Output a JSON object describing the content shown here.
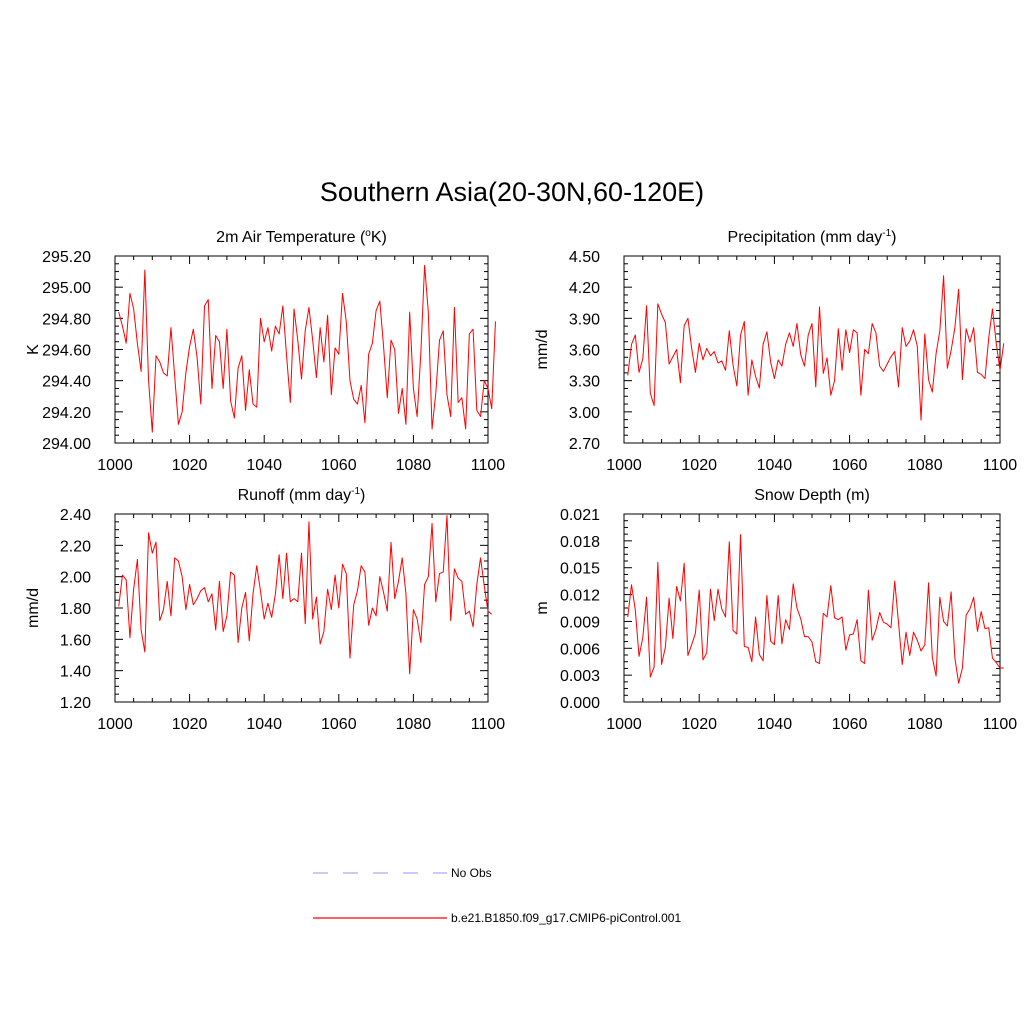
{
  "title": "Southern Asia(20-30N,60-120E)",
  "colors": {
    "model": "#ff0000",
    "obs": "#aaaaff",
    "axis": "#000000"
  },
  "chart_data": [
    {
      "type": "line",
      "title_main": "2m Air Temperature (",
      "title_sup": "o",
      "title_end": "K)",
      "ylabel": "K",
      "xlim": [
        1000,
        1100
      ],
      "ylim": [
        294.0,
        295.2
      ],
      "xticks": [
        "1000",
        "1020",
        "1040",
        "1060",
        "1080",
        "1100"
      ],
      "yticks": [
        "294.00",
        "294.20",
        "294.40",
        "294.60",
        "294.80",
        "295.00",
        "295.20"
      ],
      "series": [
        {
          "name": "b.e21.B1850.f09_g17.CMIP6-piControl.001",
          "x_start": 1001,
          "values": [
            294.84,
            294.75,
            294.64,
            294.96,
            294.86,
            294.64,
            294.46,
            295.11,
            294.4,
            294.07,
            294.56,
            294.52,
            294.45,
            294.43,
            294.74,
            294.43,
            294.12,
            294.2,
            294.45,
            294.62,
            294.73,
            294.55,
            294.25,
            294.88,
            294.92,
            294.35,
            294.69,
            294.65,
            294.35,
            294.73,
            294.27,
            294.16,
            294.48,
            294.56,
            294.21,
            294.47,
            294.25,
            294.23,
            294.8,
            294.65,
            294.74,
            294.59,
            294.75,
            294.7,
            294.88,
            294.56,
            294.26,
            294.86,
            294.66,
            294.41,
            294.72,
            294.87,
            294.66,
            294.42,
            294.74,
            294.52,
            294.82,
            294.31,
            294.61,
            294.57,
            294.96,
            294.78,
            294.4,
            294.28,
            294.25,
            294.37,
            294.13,
            294.57,
            294.64,
            294.85,
            294.91,
            294.62,
            294.29,
            294.66,
            294.6,
            294.19,
            294.35,
            294.12,
            294.84,
            294.35,
            294.17,
            294.58,
            295.14,
            294.84,
            294.09,
            294.32,
            294.66,
            294.72,
            294.31,
            294.17,
            294.87,
            294.26,
            294.29,
            294.09,
            294.7,
            294.73,
            294.21,
            294.17,
            294.4,
            294.35,
            294.22,
            294.78
          ]
        }
      ]
    },
    {
      "type": "line",
      "title_main": "Precipitation (mm day",
      "title_sup": "-1",
      "title_end": ")",
      "ylabel": "mm/d",
      "xlim": [
        1000,
        1100
      ],
      "ylim": [
        2.7,
        4.5
      ],
      "xticks": [
        "1000",
        "1020",
        "1040",
        "1060",
        "1080",
        "1100"
      ],
      "yticks": [
        "2.70",
        "3.00",
        "3.30",
        "3.60",
        "3.90",
        "4.20",
        "4.50"
      ],
      "series": [
        {
          "name": "b.e21.B1850.f09_g17.CMIP6-piControl.001",
          "x_start": 1001,
          "values": [
            3.35,
            3.65,
            3.74,
            3.38,
            3.51,
            4.02,
            3.18,
            3.06,
            4.04,
            3.94,
            3.86,
            3.46,
            3.53,
            3.6,
            3.28,
            3.83,
            3.9,
            3.61,
            3.38,
            3.66,
            3.5,
            3.61,
            3.54,
            3.58,
            3.47,
            3.49,
            3.4,
            3.78,
            3.45,
            3.25,
            3.74,
            3.87,
            3.16,
            3.5,
            3.34,
            3.23,
            3.65,
            3.77,
            3.48,
            3.32,
            3.5,
            3.44,
            3.65,
            3.76,
            3.63,
            3.85,
            3.55,
            3.44,
            3.74,
            3.85,
            3.24,
            4.01,
            3.37,
            3.52,
            3.16,
            3.3,
            3.8,
            3.4,
            3.79,
            3.57,
            3.79,
            3.76,
            3.16,
            3.6,
            3.56,
            3.85,
            3.76,
            3.44,
            3.39,
            3.46,
            3.53,
            3.58,
            3.24,
            3.81,
            3.63,
            3.68,
            3.79,
            3.63,
            2.92,
            3.75,
            3.31,
            3.19,
            3.56,
            3.78,
            4.31,
            3.42,
            3.59,
            3.81,
            4.18,
            3.31,
            3.8,
            3.67,
            3.81,
            3.38,
            3.36,
            3.32,
            3.71,
            3.99,
            3.66,
            3.4,
            3.66
          ]
        }
      ]
    },
    {
      "type": "line",
      "title_main": "Runoff (mm day",
      "title_sup": "-1",
      "title_end": ")",
      "ylabel": "mm/d",
      "xlim": [
        1000,
        1100
      ],
      "ylim": [
        1.2,
        2.4
      ],
      "xticks": [
        "1000",
        "1020",
        "1040",
        "1060",
        "1080",
        "1100"
      ],
      "yticks": [
        "1.20",
        "1.40",
        "1.60",
        "1.80",
        "2.00",
        "2.20",
        "2.40"
      ],
      "series": [
        {
          "name": "b.e21.B1850.f09_g17.CMIP6-piControl.001",
          "x_start": 1001,
          "values": [
            1.81,
            2.01,
            1.98,
            1.61,
            1.92,
            2.11,
            1.66,
            1.52,
            2.28,
            2.15,
            2.22,
            1.72,
            1.79,
            1.97,
            1.75,
            2.12,
            2.1,
            2.0,
            1.79,
            1.95,
            1.82,
            1.86,
            1.91,
            1.93,
            1.84,
            1.89,
            1.66,
            1.97,
            1.65,
            1.75,
            2.03,
            2.01,
            1.58,
            1.8,
            1.9,
            1.59,
            1.89,
            2.07,
            1.91,
            1.73,
            1.83,
            1.74,
            1.89,
            2.14,
            1.86,
            2.15,
            1.84,
            1.86,
            1.84,
            2.15,
            1.7,
            2.35,
            1.73,
            1.87,
            1.57,
            1.65,
            1.92,
            1.79,
            2.01,
            1.8,
            2.08,
            2.02,
            1.48,
            1.82,
            1.91,
            2.07,
            2.03,
            1.69,
            1.8,
            1.75,
            2.0,
            1.9,
            1.78,
            2.22,
            1.86,
            1.97,
            2.12,
            1.89,
            1.38,
            1.79,
            1.73,
            1.58,
            1.95,
            2.0,
            2.34,
            1.84,
            2.02,
            2.03,
            2.39,
            1.72,
            2.05,
            1.99,
            1.97,
            1.76,
            1.78,
            1.68,
            1.95,
            2.12,
            1.94,
            1.78,
            1.76
          ]
        }
      ]
    },
    {
      "type": "line",
      "title_main": "Snow Depth (m)",
      "title_sup": "",
      "title_end": "",
      "ylabel": "m",
      "xlim": [
        1000,
        1100
      ],
      "ylim": [
        0.0,
        0.021
      ],
      "xticks": [
        "1000",
        "1020",
        "1040",
        "1060",
        "1080",
        "1100"
      ],
      "yticks": [
        "0.000",
        "0.003",
        "0.006",
        "0.009",
        "0.012",
        "0.015",
        "0.018",
        "0.021"
      ],
      "series": [
        {
          "name": "b.e21.B1850.f09_g17.CMIP6-piControl.001",
          "x_start": 1001,
          "values": [
            0.0095,
            0.0131,
            0.0103,
            0.0051,
            0.0072,
            0.0117,
            0.0028,
            0.0039,
            0.0156,
            0.0042,
            0.0061,
            0.0116,
            0.0071,
            0.0129,
            0.0113,
            0.0155,
            0.0052,
            0.0064,
            0.0077,
            0.0125,
            0.0047,
            0.0055,
            0.0126,
            0.0091,
            0.0126,
            0.0104,
            0.0095,
            0.0179,
            0.008,
            0.0076,
            0.0187,
            0.0062,
            0.0061,
            0.0045,
            0.0095,
            0.0053,
            0.0046,
            0.0119,
            0.0068,
            0.0064,
            0.0119,
            0.0065,
            0.0092,
            0.0081,
            0.0132,
            0.0105,
            0.0093,
            0.0073,
            0.0073,
            0.0067,
            0.0045,
            0.0043,
            0.0099,
            0.0095,
            0.013,
            0.0094,
            0.0092,
            0.0095,
            0.0058,
            0.0075,
            0.0076,
            0.0092,
            0.0046,
            0.0043,
            0.0125,
            0.0069,
            0.0081,
            0.01,
            0.0089,
            0.0087,
            0.0083,
            0.0135,
            0.0089,
            0.0042,
            0.0078,
            0.0052,
            0.0078,
            0.0069,
            0.0057,
            0.0064,
            0.0133,
            0.005,
            0.0029,
            0.0117,
            0.009,
            0.0085,
            0.0123,
            0.0049,
            0.0021,
            0.0038,
            0.0097,
            0.0104,
            0.0117,
            0.0079,
            0.0101,
            0.0082,
            0.0083,
            0.0049,
            0.0044,
            0.0038,
            0.0038
          ]
        }
      ]
    }
  ],
  "legend": [
    {
      "label": "No Obs",
      "style": "dashed",
      "color": "#aaaaff"
    },
    {
      "label": "b.e21.B1850.f09_g17.CMIP6-piControl.001",
      "style": "solid",
      "color": "#ff0000"
    }
  ]
}
